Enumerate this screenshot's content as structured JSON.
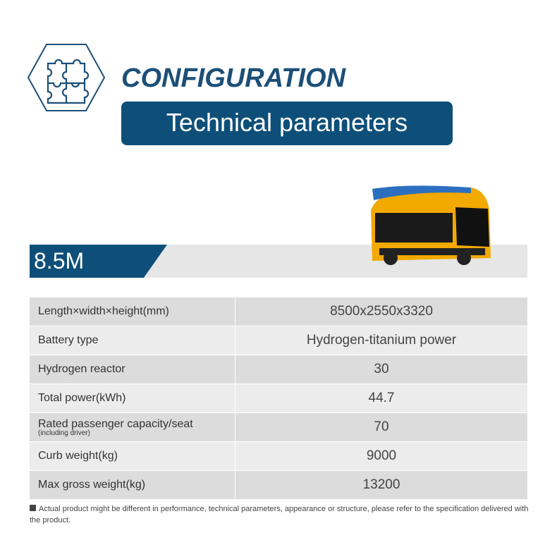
{
  "header": {
    "title": "CONFIGURATION",
    "subtitle": "Technical parameters",
    "icon": "puzzle-hexagon-icon"
  },
  "model": {
    "label": "8.5M"
  },
  "specs": [
    {
      "label": "Length×width×height(mm)",
      "value": "8500x2550x3320"
    },
    {
      "label": "Battery type",
      "value": "Hydrogen-titanium power"
    },
    {
      "label": "Hydrogen reactor",
      "value": "30"
    },
    {
      "label": "Total power(kWh)",
      "value": "44.7"
    },
    {
      "label": "Rated passenger capacity/seat",
      "note": "(including driver)",
      "value": "70"
    },
    {
      "label": "Curb weight(kg)",
      "value": "9000"
    },
    {
      "label": "Max gross weight(kg)",
      "value": "13200"
    }
  ],
  "footer": {
    "disclaimer": "Actual product might be different in performance, technical parameters, appearance or structure, please refer to the specification delivered with the product."
  },
  "colors": {
    "brand": "#0e4f79",
    "bus": "#f2a900"
  }
}
